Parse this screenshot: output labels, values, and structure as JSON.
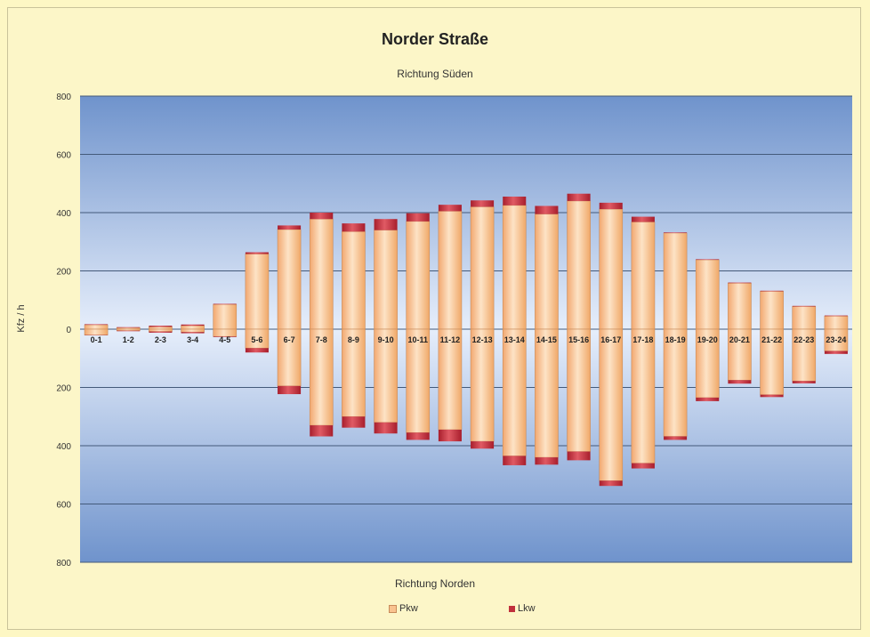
{
  "chart_data": {
    "type": "bar",
    "title": "Norder Straße",
    "subtitle": "Richtung Süden",
    "bottom_label": "Richtung Norden",
    "ylabel": "Kfz / h",
    "categories": [
      "0-1",
      "1-2",
      "2-3",
      "3-4",
      "4-5",
      "5-6",
      "6-7",
      "7-8",
      "8-9",
      "9-10",
      "10-11",
      "11-12",
      "12-13",
      "13-14",
      "14-15",
      "15-16",
      "16-17",
      "17-18",
      "18-19",
      "19-20",
      "20-21",
      "21-22",
      "22-23",
      "23-24"
    ],
    "ylim": [
      -800,
      800
    ],
    "yticks": [
      800,
      600,
      400,
      200,
      0,
      -200,
      -400,
      -600,
      -800
    ],
    "ytick_labels": [
      "800",
      "600",
      "400",
      "200",
      "0",
      "200",
      "400",
      "600",
      "800"
    ],
    "series": [
      {
        "name": "Pkw",
        "color": "#f9c38f",
        "values_sued": [
          15,
          5,
          8,
          12,
          85,
          258,
          342,
          378,
          335,
          340,
          370,
          405,
          420,
          425,
          395,
          440,
          412,
          368,
          330,
          238,
          158,
          130,
          78,
          45
        ],
        "values_nord": [
          20,
          5,
          8,
          10,
          25,
          65,
          195,
          330,
          300,
          320,
          355,
          345,
          385,
          435,
          440,
          420,
          520,
          460,
          368,
          235,
          175,
          225,
          178,
          75
        ]
      },
      {
        "name": "Lkw",
        "color": "#c0303c",
        "values_sued": [
          2,
          2,
          4,
          4,
          2,
          6,
          14,
          22,
          28,
          38,
          28,
          22,
          22,
          30,
          28,
          25,
          22,
          18,
          2,
          2,
          2,
          2,
          2,
          2
        ],
        "values_nord": [
          1,
          2,
          4,
          4,
          2,
          15,
          28,
          38,
          38,
          38,
          25,
          40,
          25,
          32,
          25,
          30,
          18,
          18,
          12,
          12,
          12,
          8,
          8,
          10
        ]
      }
    ],
    "grid": true,
    "legend_position": "bottom"
  }
}
